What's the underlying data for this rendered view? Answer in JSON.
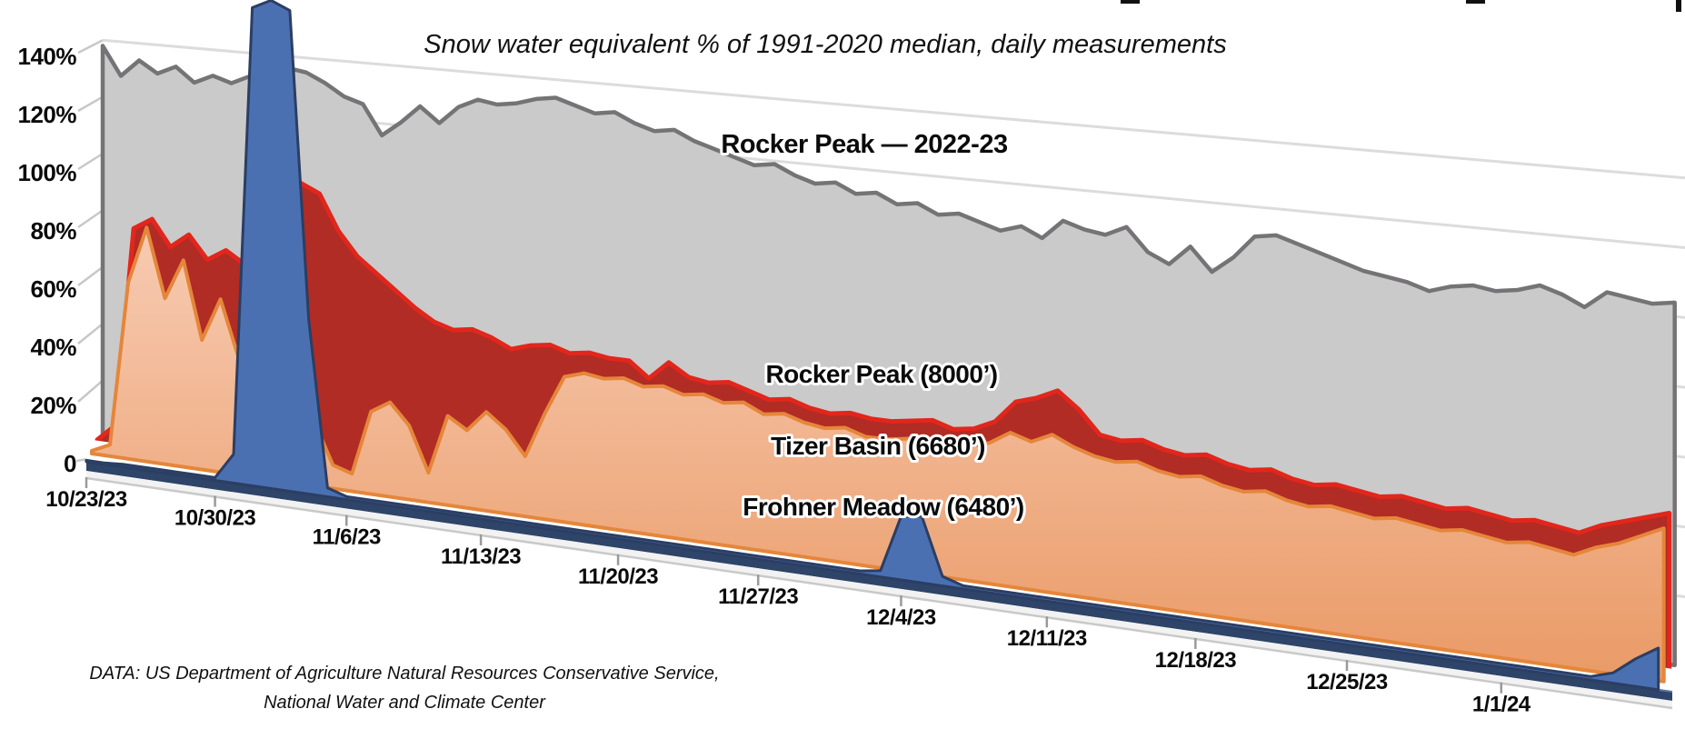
{
  "chart_data": {
    "type": "area",
    "projection": "3d-perspective-excel",
    "title": "Snow water equivalent % of 1991-2020 median, daily measurements",
    "x_axis": {
      "start_date": "10/23/23",
      "tick_labels": [
        "10/23/23",
        "10/30/23",
        "11/6/23",
        "11/13/23",
        "11/20/23",
        "11/27/23",
        "12/4/23",
        "12/11/23",
        "12/18/23",
        "12/25/23",
        "1/1/24"
      ],
      "tick_days": [
        0,
        7,
        14,
        21,
        28,
        35,
        42,
        49,
        56,
        63,
        70
      ]
    },
    "y_axis": {
      "unit": "% of 1991-2020 median",
      "tick_labels": [
        "140%",
        "120%",
        "100%",
        "80%",
        "60%",
        "40%",
        "20%",
        "0"
      ],
      "tick_values": [
        140,
        120,
        100,
        80,
        60,
        40,
        20,
        0
      ],
      "gridline_values": [
        140,
        120,
        100,
        80,
        60,
        40,
        20
      ]
    },
    "legend_position": "inline-annotations",
    "grid": true,
    "series": [
      {
        "name": "rocker-peak-2022-23",
        "label": "Rocker Peak — 2022-23",
        "fill": "#CACACA",
        "edge": "#757376",
        "values": [
          138,
          128,
          134,
          130,
          133,
          128,
          131,
          129,
          132,
          135,
          136,
          135,
          132,
          128,
          126,
          116,
          121,
          127,
          122,
          128,
          131,
          130,
          131,
          133,
          134,
          132,
          130,
          131,
          128,
          126,
          127,
          124,
          122,
          120,
          118,
          119,
          116,
          114,
          115,
          112,
          113,
          110,
          111,
          108,
          109,
          107,
          105,
          107,
          104,
          110,
          108,
          107,
          110,
          103,
          100,
          106,
          99,
          104,
          111,
          112,
          110,
          108,
          106,
          104,
          103,
          102,
          100,
          102,
          103,
          102,
          103,
          105,
          103,
          100,
          105,
          104,
          103,
          104
        ]
      },
      {
        "name": "rocker-peak-8000",
        "label": "Rocker Peak (8000’)",
        "fill": "#B02C24",
        "edge": "#E2261C",
        "values": [
          2,
          8,
          78,
          82,
          73,
          78,
          70,
          74,
          70,
          82,
          99,
          100,
          97,
          85,
          77,
          72,
          67,
          62,
          58,
          56,
          57,
          55,
          52,
          54,
          55,
          53,
          54,
          53,
          53,
          48,
          54,
          50,
          49,
          50,
          48,
          46,
          47,
          45,
          44,
          45,
          44,
          44,
          45,
          46,
          44,
          45,
          48,
          55,
          57,
          60,
          55,
          48,
          47,
          48,
          46,
          45,
          46,
          44,
          43,
          44,
          42,
          41,
          42,
          41,
          40,
          41,
          40,
          39,
          40,
          39,
          38,
          39,
          38,
          37,
          40,
          42,
          44,
          46
        ]
      },
      {
        "name": "tizer-basin-6680",
        "label": "Tizer Basin (6680’)",
        "fill": "#F2B48C",
        "fill_top": "#F7CBB2",
        "fill_bottom": "#EA9A66",
        "edge": "#E5863A",
        "values": [
          1,
          4,
          62,
          82,
          58,
          72,
          45,
          60,
          40,
          33,
          28,
          25,
          22,
          8,
          6,
          28,
          32,
          25,
          10,
          30,
          26,
          33,
          28,
          20,
          35,
          48,
          50,
          49,
          50,
          48,
          49,
          47,
          48,
          46,
          47,
          44,
          45,
          43,
          42,
          43,
          41,
          41,
          42,
          43,
          41,
          42,
          44,
          48,
          46,
          49,
          46,
          44,
          43,
          44,
          42,
          41,
          42,
          40,
          39,
          40,
          38,
          37,
          38,
          37,
          36,
          37,
          36,
          35,
          36,
          35,
          34,
          35,
          34,
          33,
          36,
          38,
          41,
          44
        ]
      },
      {
        "name": "frohner-meadow-6480",
        "label": "Frohner Meadow (6480’)",
        "fill": "#4B70B2",
        "edge": "#2B3E63",
        "floor_color": "#2E4468",
        "values": [
          0.5,
          0.5,
          1,
          1,
          1,
          1,
          1,
          1,
          10,
          165,
          168,
          165,
          60,
          3,
          1,
          1,
          1,
          1,
          1,
          1,
          1,
          1,
          1,
          1,
          1,
          1,
          1,
          1,
          1,
          1,
          1,
          1,
          1,
          1,
          1,
          1,
          1,
          1,
          1,
          1,
          1,
          2,
          20,
          21,
          3,
          1,
          1,
          1,
          1,
          1,
          1,
          1,
          1,
          1,
          1,
          1,
          1,
          1,
          1,
          1,
          1,
          1,
          1,
          1,
          1,
          1,
          1,
          1,
          1,
          1,
          1,
          1,
          1,
          1,
          1,
          3,
          8,
          12
        ]
      }
    ],
    "colors": {
      "gridline": "#DCDCDC",
      "tick_stub": "#C8C8C8",
      "axis_tick": "#9A9A9A",
      "floor_front": "#F2F2F2",
      "floor_edge": "#C9C9C9",
      "floor_navy_highlight": "#5577AC"
    }
  },
  "credit": {
    "line1": "DATA: US Department of Agriculture Natural Resources Conservative Service,",
    "line2": "National Water and Climate Center"
  }
}
